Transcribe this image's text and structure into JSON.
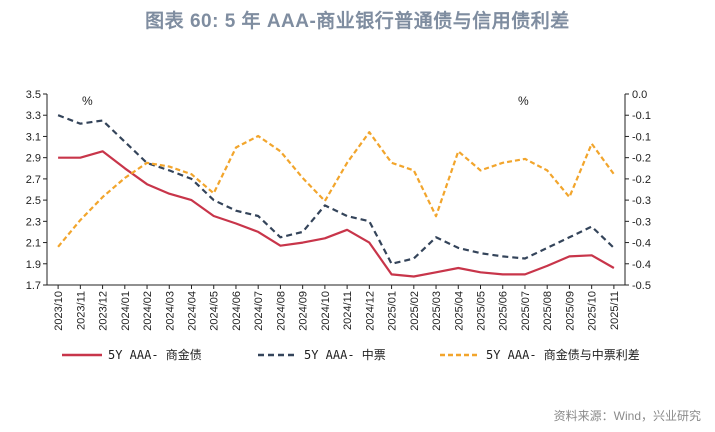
{
  "title": "图表 60: 5 年 AAA-商业银行普通债与信用债利差",
  "source": "资料来源：Wind，兴业研究",
  "chart_data": {
    "type": "line",
    "title": "图表 60: 5 年 AAA-商业银行普通债与信用债利差",
    "y_left": {
      "unit": "%",
      "range": [
        1.7,
        3.5
      ],
      "ticks": [
        "3.5",
        "3.3",
        "3.1",
        "2.9",
        "2.7",
        "2.5",
        "2.3",
        "2.1",
        "1.9",
        "1.7"
      ]
    },
    "y_right": {
      "unit": "%",
      "range": [
        -0.5,
        0.0
      ],
      "ticks": [
        "0.0",
        "-0.1",
        "-0.1",
        "-0.2",
        "-0.2",
        "-0.3",
        "-0.3",
        "-0.4",
        "-0.4",
        "-0.5"
      ]
    },
    "x_labels": [
      "2023/10",
      "2023/11",
      "2023/12",
      "2024/01",
      "2024/02",
      "2024/03",
      "2024/04",
      "2024/05",
      "2024/06",
      "2024/07",
      "2024/08",
      "2024/09",
      "2024/10",
      "2024/11",
      "2024/12",
      "2025/01",
      "2025/02",
      "2025/03",
      "2025/04",
      "2025/05",
      "2025/06",
      "2025/07",
      "2025/08",
      "2025/09",
      "2025/10",
      "2025/11"
    ],
    "series": [
      {
        "name": "5Y AAA- 商金债",
        "axis": "left",
        "color": "#c8354a",
        "dash": "solid",
        "values": [
          2.9,
          2.9,
          2.96,
          2.8,
          2.65,
          2.56,
          2.5,
          2.35,
          2.28,
          2.2,
          2.07,
          2.1,
          2.14,
          2.22,
          2.1,
          1.8,
          1.78,
          1.82,
          1.86,
          1.82,
          1.8,
          1.8,
          1.88,
          1.97,
          1.98,
          1.86
        ]
      },
      {
        "name": "5Y AAA- 中票",
        "axis": "left",
        "color": "#34445a",
        "dash": "6,4",
        "values": [
          3.3,
          3.22,
          3.25,
          3.05,
          2.85,
          2.78,
          2.7,
          2.5,
          2.4,
          2.35,
          2.15,
          2.2,
          2.45,
          2.35,
          2.3,
          1.9,
          1.95,
          2.15,
          2.05,
          2.0,
          1.97,
          1.95,
          2.05,
          2.15,
          2.25,
          2.05
        ]
      },
      {
        "name": "5Y AAA- 商金债与中票利差",
        "axis": "right",
        "color": "#f2a52c",
        "dash": "5,3",
        "values": [
          -0.4,
          -0.33,
          -0.27,
          -0.22,
          -0.18,
          -0.19,
          -0.21,
          -0.26,
          -0.14,
          -0.11,
          -0.15,
          -0.22,
          -0.28,
          -0.18,
          -0.1,
          -0.18,
          -0.2,
          -0.32,
          -0.15,
          -0.2,
          -0.18,
          -0.17,
          -0.2,
          -0.27,
          -0.13,
          -0.21
        ]
      }
    ]
  }
}
